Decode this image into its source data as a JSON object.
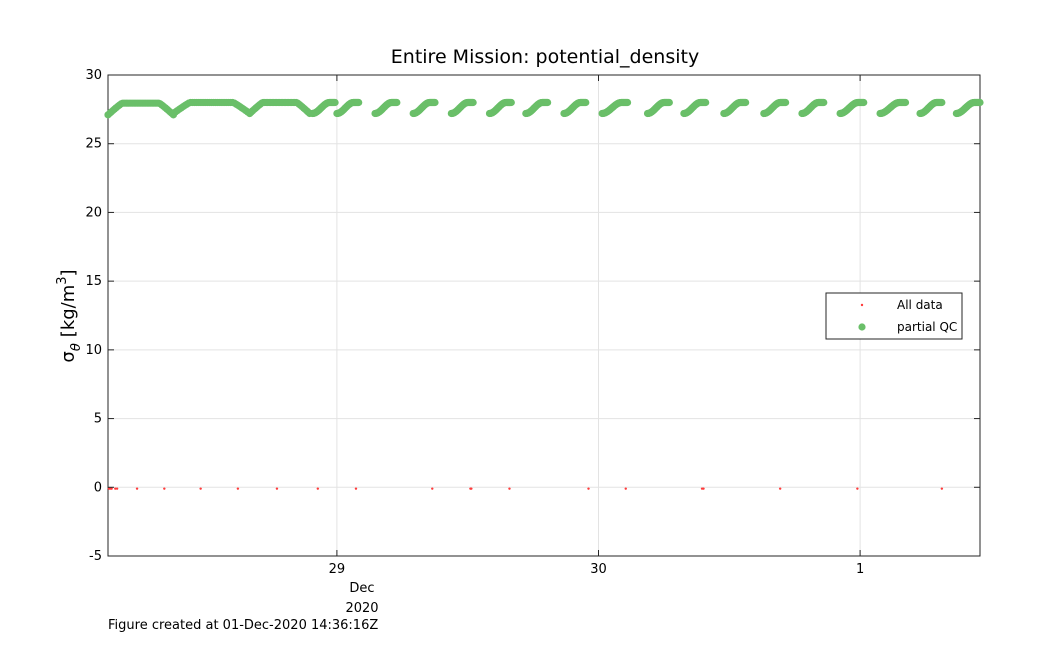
{
  "chart_data": {
    "type": "scatter",
    "title": "Entire Mission: potential_density",
    "ylabel": {
      "symbol": "σ",
      "subscript": "θ",
      "unit": "[kg/m",
      "superscript": "3",
      "unit_close": "]"
    },
    "xlabel": "",
    "ylim": [
      -5,
      30
    ],
    "yticks": [
      -5,
      0,
      5,
      10,
      15,
      20,
      25,
      30
    ],
    "xlim": [
      "2020-11-28T03:00",
      "2020-12-01T11:00"
    ],
    "xticks": [
      {
        "value": "2020-11-29T00:00",
        "label": "29"
      },
      {
        "value": "2020-11-30T00:00",
        "label": "30"
      },
      {
        "value": "2020-12-01T00:00",
        "label": "1"
      }
    ],
    "xaxis_secondary_label": {
      "month": "Dec",
      "year": "2020"
    },
    "grid": true,
    "legend_placement": "right",
    "series": [
      {
        "name": "All data",
        "marker": "dot",
        "color": "#ff3b3b",
        "points": [
          {
            "x": "2020-11-28T03:05",
            "y": -0.1
          },
          {
            "x": "2020-11-28T03:12",
            "y": -0.1
          },
          {
            "x": "2020-11-28T03:20",
            "y": -0.1
          },
          {
            "x": "2020-11-28T03:40",
            "y": -0.1
          },
          {
            "x": "2020-11-28T03:50",
            "y": -0.1
          },
          {
            "x": "2020-11-28T05:40",
            "y": -0.1
          },
          {
            "x": "2020-11-28T08:10",
            "y": -0.1
          },
          {
            "x": "2020-11-28T11:30",
            "y": -0.1
          },
          {
            "x": "2020-11-28T14:55",
            "y": -0.1
          },
          {
            "x": "2020-11-28T18:30",
            "y": -0.1
          },
          {
            "x": "2020-11-28T22:15",
            "y": -0.1
          },
          {
            "x": "2020-11-29T01:45",
            "y": -0.1
          },
          {
            "x": "2020-11-29T08:45",
            "y": -0.1
          },
          {
            "x": "2020-11-29T12:15",
            "y": -0.1
          },
          {
            "x": "2020-11-29T12:20",
            "y": -0.1
          },
          {
            "x": "2020-11-29T15:50",
            "y": -0.1
          },
          {
            "x": "2020-11-29T23:05",
            "y": -0.1
          },
          {
            "x": "2020-11-30T02:30",
            "y": -0.1
          },
          {
            "x": "2020-11-30T09:30",
            "y": -0.1
          },
          {
            "x": "2020-11-30T09:38",
            "y": -0.1
          },
          {
            "x": "2020-11-30T16:40",
            "y": -0.1
          },
          {
            "x": "2020-11-30T23:45",
            "y": -0.1
          },
          {
            "x": "2020-12-01T07:30",
            "y": -0.1
          }
        ]
      },
      {
        "name": "partial QC",
        "marker": "circle",
        "color": "#6abf69",
        "profiles": {
          "description_free": true,
          "segments": [
            {
              "start": "2020-11-28T03:00",
              "end": "2020-11-28T09:00",
              "type": "yo",
              "min": 27.1,
              "max": 27.95
            },
            {
              "start": "2020-11-28T09:00",
              "end": "2020-11-28T16:00",
              "type": "yo",
              "min": 27.2,
              "max": 28.0
            },
            {
              "start": "2020-11-28T16:00",
              "end": "2020-11-28T21:30",
              "type": "yo",
              "min": 27.2,
              "max": 28.0
            },
            {
              "start": "2020-11-28T21:45",
              "end": "2020-11-28T23:50",
              "type": "up",
              "min": 27.2,
              "max": 28.0
            },
            {
              "start": "2020-11-29T00:00",
              "end": "2020-11-29T02:00",
              "type": "up",
              "min": 27.2,
              "max": 28.0
            },
            {
              "start": "2020-11-29T03:30",
              "end": "2020-11-29T05:30",
              "type": "up",
              "min": 27.2,
              "max": 28.0
            },
            {
              "start": "2020-11-29T07:00",
              "end": "2020-11-29T09:00",
              "type": "up",
              "min": 27.2,
              "max": 28.0
            },
            {
              "start": "2020-11-29T10:30",
              "end": "2020-11-29T12:30",
              "type": "up",
              "min": 27.2,
              "max": 28.0
            },
            {
              "start": "2020-11-29T14:00",
              "end": "2020-11-29T16:00",
              "type": "up",
              "min": 27.2,
              "max": 28.0
            },
            {
              "start": "2020-11-29T17:20",
              "end": "2020-11-29T19:20",
              "type": "up",
              "min": 27.2,
              "max": 28.0
            },
            {
              "start": "2020-11-29T20:50",
              "end": "2020-11-29T22:50",
              "type": "up",
              "min": 27.2,
              "max": 28.0
            },
            {
              "start": "2020-11-30T00:20",
              "end": "2020-11-30T02:40",
              "type": "up",
              "min": 27.2,
              "max": 28.0
            },
            {
              "start": "2020-11-30T04:30",
              "end": "2020-11-30T06:30",
              "type": "up",
              "min": 27.2,
              "max": 28.0
            },
            {
              "start": "2020-11-30T07:50",
              "end": "2020-11-30T09:50",
              "type": "up",
              "min": 27.2,
              "max": 28.0
            },
            {
              "start": "2020-11-30T11:30",
              "end": "2020-11-30T13:30",
              "type": "up",
              "min": 27.2,
              "max": 28.0
            },
            {
              "start": "2020-11-30T15:10",
              "end": "2020-11-30T17:10",
              "type": "up",
              "min": 27.2,
              "max": 28.0
            },
            {
              "start": "2020-11-30T18:40",
              "end": "2020-11-30T20:40",
              "type": "up",
              "min": 27.2,
              "max": 28.0
            },
            {
              "start": "2020-11-30T22:10",
              "end": "2020-12-01T00:20",
              "type": "up",
              "min": 27.2,
              "max": 28.0
            },
            {
              "start": "2020-12-01T01:50",
              "end": "2020-12-01T04:10",
              "type": "up",
              "min": 27.2,
              "max": 28.0
            },
            {
              "start": "2020-12-01T05:30",
              "end": "2020-12-01T07:30",
              "type": "up",
              "min": 27.2,
              "max": 28.0
            },
            {
              "start": "2020-12-01T08:50",
              "end": "2020-12-01T11:00",
              "type": "up",
              "min": 27.2,
              "max": 28.0
            }
          ]
        }
      }
    ]
  },
  "footnote": "Figure created at 01-Dec-2020 14:36:16Z"
}
